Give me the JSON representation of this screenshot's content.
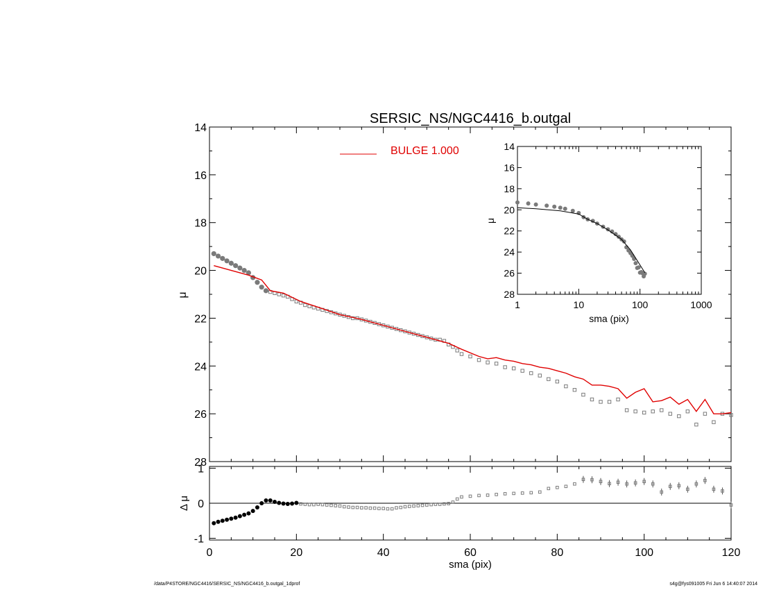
{
  "footer": {
    "path": "/data/P4STORE/NGC4416/SERSIC_NS/NGC4416_b.outgal_1dprof",
    "stamp": "s4g@fys091005  Fri Jun  6 14:40:07 2014"
  },
  "chart_data": [
    {
      "id": "main",
      "type": "scatter",
      "title": "SERSIC_NS/NGC4416_b.outgal",
      "xlabel": "",
      "ylabel": "μ",
      "xlim": [
        0,
        120
      ],
      "ylim": [
        28,
        14
      ],
      "yticks": [
        14,
        16,
        18,
        20,
        22,
        24,
        26,
        28
      ],
      "legend": {
        "position": "top-center",
        "entries": [
          {
            "label": "BULGE  1.000",
            "color": "#e00000"
          }
        ]
      },
      "series": [
        {
          "name": "BULGE  1.000",
          "kind": "line",
          "color": "#e00000",
          "x": [
            1,
            5,
            9,
            12,
            14,
            17,
            21,
            26,
            30,
            35,
            40,
            45,
            50,
            55,
            58,
            62,
            64,
            66,
            68,
            70,
            72,
            74,
            76,
            78,
            80,
            82,
            84,
            86,
            88,
            90,
            92,
            94,
            96,
            98,
            100,
            102,
            104,
            106,
            108,
            110,
            112,
            114,
            116,
            118,
            120
          ],
          "y": [
            19.8,
            20.0,
            20.2,
            20.4,
            20.85,
            20.95,
            21.3,
            21.6,
            21.85,
            22.05,
            22.3,
            22.55,
            22.8,
            23.05,
            23.3,
            23.6,
            23.7,
            23.65,
            23.75,
            23.8,
            23.9,
            23.95,
            24.05,
            24.1,
            24.2,
            24.3,
            24.45,
            24.55,
            24.8,
            24.8,
            24.85,
            24.95,
            25.35,
            25.1,
            24.95,
            25.5,
            25.45,
            25.3,
            25.6,
            25.4,
            25.9,
            25.4,
            26.0,
            26.0,
            25.95
          ]
        },
        {
          "name": "",
          "kind": "points",
          "color": "#7a7a7a",
          "x": [
            1,
            2,
            3,
            4,
            5,
            6,
            7,
            8,
            9,
            10,
            11,
            12,
            13,
            14,
            15,
            16,
            17,
            18,
            19,
            20,
            21,
            22,
            23,
            24,
            25,
            26,
            27,
            28,
            29,
            30,
            31,
            32,
            33,
            34,
            35,
            36,
            37,
            38,
            39,
            40,
            41,
            42,
            43,
            44,
            45,
            46,
            47,
            48,
            49,
            50,
            51,
            52,
            53,
            54,
            55,
            56,
            57,
            58,
            60,
            62,
            64,
            66,
            68,
            70,
            72,
            74,
            76,
            78,
            80,
            82,
            84,
            86,
            88,
            90,
            92,
            94,
            96,
            98,
            100,
            102,
            104,
            106,
            108,
            110,
            112,
            114,
            116,
            118,
            120
          ],
          "y": [
            19.3,
            19.4,
            19.5,
            19.6,
            19.7,
            19.8,
            19.9,
            20.0,
            20.1,
            20.3,
            20.5,
            20.7,
            20.85,
            20.9,
            20.95,
            21.0,
            21.05,
            21.1,
            21.2,
            21.3,
            21.35,
            21.45,
            21.5,
            21.55,
            21.6,
            21.65,
            21.7,
            21.75,
            21.8,
            21.85,
            21.9,
            21.95,
            22.0,
            22.0,
            22.05,
            22.1,
            22.15,
            22.2,
            22.25,
            22.3,
            22.35,
            22.4,
            22.45,
            22.5,
            22.55,
            22.6,
            22.65,
            22.7,
            22.75,
            22.8,
            22.85,
            22.9,
            22.9,
            22.95,
            23.1,
            23.2,
            23.35,
            23.5,
            23.6,
            23.75,
            23.85,
            23.9,
            24.05,
            24.1,
            24.2,
            24.3,
            24.4,
            24.55,
            24.65,
            24.85,
            25.0,
            25.2,
            25.4,
            25.5,
            25.5,
            25.4,
            25.85,
            25.9,
            25.95,
            25.9,
            25.85,
            26.0,
            26.1,
            25.9,
            26.45,
            26.0,
            26.35,
            26.0,
            26.05
          ]
        }
      ]
    },
    {
      "id": "inset",
      "type": "scatter",
      "title": "",
      "xlabel": "sma (pix)",
      "ylabel": "μ",
      "xscale": "log",
      "xlim": [
        1,
        1000
      ],
      "xticks": [
        1,
        10,
        100,
        1000
      ],
      "ylim": [
        28,
        14
      ],
      "yticks": [
        14,
        16,
        18,
        20,
        22,
        24,
        26,
        28
      ],
      "series": [
        {
          "name": "",
          "kind": "line",
          "color": "#000000",
          "x": [
            1,
            2,
            5,
            10,
            14,
            20,
            30,
            50,
            70,
            90,
            110,
            120
          ],
          "y": [
            19.8,
            19.9,
            20.1,
            20.4,
            20.9,
            21.3,
            21.9,
            22.8,
            23.8,
            24.8,
            25.6,
            25.95
          ]
        },
        {
          "name": "",
          "kind": "points",
          "color": "#7a7a7a",
          "x": [
            1,
            1.5,
            2,
            3,
            4,
            5,
            6,
            8,
            10,
            12,
            14,
            17,
            20,
            25,
            30,
            35,
            40,
            45,
            50,
            55,
            60,
            65,
            70,
            75,
            80,
            85,
            90,
            95,
            100,
            105,
            110,
            115,
            120
          ],
          "y": [
            19.3,
            19.4,
            19.5,
            19.6,
            19.7,
            19.8,
            19.9,
            20.1,
            20.3,
            20.7,
            20.9,
            21.05,
            21.3,
            21.6,
            21.85,
            22.05,
            22.3,
            22.55,
            22.8,
            23.0,
            23.55,
            23.85,
            24.1,
            24.35,
            24.65,
            25.05,
            25.5,
            25.45,
            25.95,
            25.9,
            26.0,
            26.3,
            26.05
          ]
        }
      ]
    },
    {
      "id": "residual",
      "type": "scatter",
      "title": "",
      "xlabel": "sma (pix)",
      "ylabel": "Δ μ",
      "xlim": [
        0,
        120
      ],
      "xticks": [
        0,
        20,
        40,
        60,
        80,
        100,
        120
      ],
      "ylim": [
        -1,
        1
      ],
      "yticks": [
        -1,
        0,
        1
      ],
      "series": [
        {
          "name": "",
          "kind": "points",
          "color": "#000000",
          "x": [
            1,
            2,
            3,
            4,
            5,
            6,
            7,
            8,
            9,
            10,
            11,
            12,
            13,
            14,
            15,
            16,
            17,
            18,
            19,
            20
          ],
          "y": [
            -0.57,
            -0.53,
            -0.5,
            -0.47,
            -0.44,
            -0.41,
            -0.37,
            -0.33,
            -0.29,
            -0.22,
            -0.12,
            0.0,
            0.08,
            0.08,
            0.04,
            0.01,
            -0.01,
            -0.02,
            -0.01,
            0.01
          ]
        },
        {
          "name": "",
          "kind": "points",
          "color": "#7a7a7a",
          "x": [
            21,
            22,
            23,
            24,
            25,
            26,
            27,
            28,
            29,
            30,
            31,
            32,
            33,
            34,
            35,
            36,
            37,
            38,
            39,
            40,
            41,
            42,
            43,
            44,
            45,
            46,
            47,
            48,
            49,
            50,
            51,
            52,
            53,
            54,
            55,
            56,
            57,
            58,
            60,
            62,
            64,
            66,
            68,
            70,
            72,
            74,
            76,
            78,
            80,
            82,
            84,
            86,
            88,
            90,
            92,
            94,
            96,
            98,
            100,
            102,
            104,
            106,
            108,
            110,
            112,
            114,
            116,
            118,
            120
          ],
          "y": [
            -0.02,
            -0.03,
            -0.04,
            -0.04,
            -0.03,
            -0.04,
            -0.05,
            -0.06,
            -0.07,
            -0.08,
            -0.1,
            -0.11,
            -0.12,
            -0.12,
            -0.13,
            -0.13,
            -0.14,
            -0.14,
            -0.15,
            -0.15,
            -0.16,
            -0.16,
            -0.13,
            -0.12,
            -0.1,
            -0.09,
            -0.08,
            -0.07,
            -0.06,
            -0.05,
            -0.04,
            -0.03,
            -0.03,
            -0.02,
            -0.01,
            0.03,
            0.12,
            0.18,
            0.2,
            0.22,
            0.23,
            0.25,
            0.27,
            0.28,
            0.29,
            0.3,
            0.32,
            0.42,
            0.45,
            0.48,
            0.55,
            0.68,
            0.67,
            0.62,
            0.56,
            0.6,
            0.55,
            0.58,
            0.62,
            0.55,
            0.32,
            0.48,
            0.5,
            0.4,
            0.55,
            0.65,
            0.4,
            0.35,
            -0.05
          ]
        }
      ]
    }
  ]
}
